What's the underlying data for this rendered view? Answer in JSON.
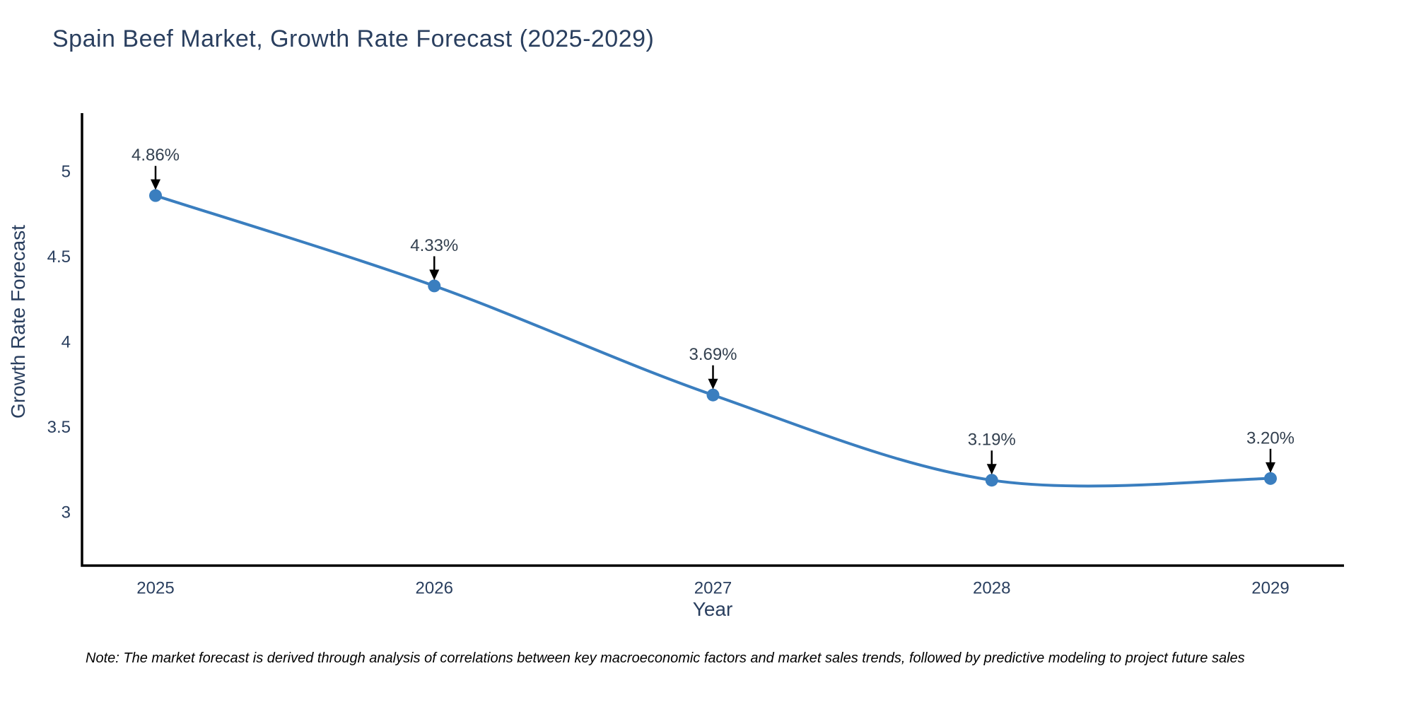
{
  "chart_data": {
    "type": "line",
    "title": "Spain Beef Market, Growth Rate Forecast (2025-2029)",
    "xlabel": "Year",
    "ylabel": "Growth Rate Forecast",
    "x": [
      "2025",
      "2026",
      "2027",
      "2028",
      "2029"
    ],
    "series": [
      {
        "name": "Growth Rate Forecast",
        "values": [
          4.86,
          4.33,
          3.69,
          3.19,
          3.2
        ]
      }
    ],
    "point_labels": [
      "4.86%",
      "4.33%",
      "3.69%",
      "3.19%",
      "3.20%"
    ],
    "yticks": [
      "3",
      "3.5",
      "4",
      "4.5",
      "5"
    ],
    "ytick_values": [
      3,
      3.5,
      4,
      4.5,
      5
    ],
    "ylim": [
      2.689,
      5.344
    ],
    "line_shape": "spline",
    "grid": false,
    "legend": "none",
    "note": "Note: The market forecast is derived through analysis of correlations between key macroeconomic factors and market sales trends, followed by predictive modeling to project future sales",
    "colors": {
      "line": "#3a7ebf",
      "marker": "#3a7ebf",
      "axis_line": "#000000",
      "axis_text": "#2a3f5f",
      "annotation_text": "#33404f",
      "arrow": "#000000",
      "note_text": "#000000",
      "background": "#ffffff"
    }
  }
}
